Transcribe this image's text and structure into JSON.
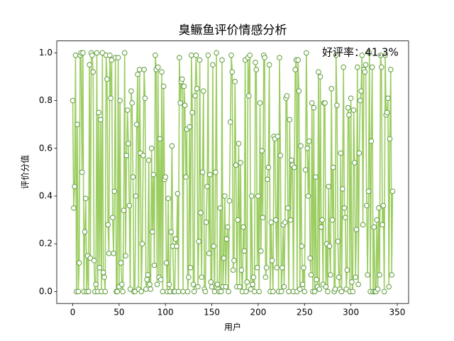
{
  "chart_data": {
    "type": "line",
    "title": "臭鳜鱼评价情感分析",
    "xlabel": "用户",
    "ylabel": "评价分值",
    "annotation": "好评率：41.3%",
    "xlim": [
      -17.25,
      362.25
    ],
    "xticks": [
      0,
      50,
      100,
      150,
      200,
      250,
      300,
      350
    ],
    "ylim": [
      -0.05,
      1.05
    ],
    "yticks": [
      {
        "value": 0,
        "label": "0.0"
      },
      0.2,
      0.4,
      0.6,
      0.8,
      {
        "value": 1,
        "label": "1.0"
      }
    ],
    "grid": false,
    "series": [
      {
        "color": "#9ccd62",
        "marker_edge": "#5e9c3a",
        "values": [
          0.8,
          0.35,
          0.44,
          0.99,
          0.0,
          0.7,
          0.0,
          0.12,
          0.99,
          1.0,
          0.5,
          1.0,
          0.0,
          0.25,
          0.39,
          0.0,
          0.15,
          0.0,
          0.95,
          0.14,
          1.0,
          0.99,
          0.92,
          0.13,
          0.0,
          0.03,
          1.0,
          0.0,
          0.75,
          0.1,
          0.72,
          0.0,
          1.0,
          0.08,
          0.06,
          0.0,
          0.99,
          0.89,
          0.28,
          0.16,
          0.99,
          0.81,
          0.97,
          0.31,
          0.16,
          0.42,
          0.98,
          0.0,
          0.0,
          0.98,
          0.02,
          0.8,
          0.12,
          0.03,
          0.0,
          0.34,
          1.0,
          0.15,
          0.57,
          0.76,
          0.62,
          0.36,
          0.01,
          0.84,
          0.79,
          0.48,
          0.0,
          0.0,
          0.4,
          0.7,
          0.91,
          0.01,
          0.93,
          0.58,
          0.0,
          0.2,
          0.57,
          0.93,
          0.81,
          0.01,
          0.05,
          0.07,
          0.55,
          0.03,
          0.01,
          0.6,
          0.25,
          0.49,
          0.11,
          0.99,
          0.93,
          0.03,
          0.94,
          0.06,
          0.64,
          0.05,
          0.92,
          0.0,
          0.86,
          0.47,
          0.48,
          0.12,
          0.0,
          0.39,
          0.03,
          0.0,
          0.25,
          0.61,
          0.19,
          0.0,
          0.0,
          0.22,
          0.19,
          0.41,
          0.0,
          0.98,
          0.79,
          0.88,
          0.89,
          0.0,
          0.86,
          0.78,
          0.48,
          0.68,
          0.0,
          0.06,
          0.69,
          0.1,
          0.99,
          0.75,
          0.03,
          0.0,
          0.82,
          0.99,
          0.85,
          0.02,
          0.21,
          0.97,
          0.33,
          0.06,
          0.5,
          0.84,
          0.01,
          0.0,
          0.29,
          0.44,
          0.99,
          0.16,
          0.49,
          0.04,
          0.02,
          0.95,
          0.19,
          0.0,
          0.5,
          1.0,
          0.03,
          0.01,
          0.0,
          0.35,
          0.0,
          0.97,
          0.02,
          0.14,
          0.4,
          0.02,
          0.22,
          0.27,
          0.0,
          0.38,
          0.71,
          0.99,
          0.92,
          0.09,
          0.13,
          0.88,
          0.53,
          0.02,
          0.3,
          0.62,
          0.02,
          0.54,
          0.09,
          0.0,
          0.27,
          0.17,
          0.97,
          0.0,
          0.04,
          0.98,
          0.82,
          0.99,
          0.01,
          0.4,
          0.03,
          0.06,
          0.0,
          0.96,
          0.93,
          0.1,
          0.4,
          0.0,
          0.79,
          0.17,
          0.59,
          0.31,
          0.99,
          0.98,
          0.06,
          0.1,
          0.47,
          0.52,
          0.95,
          0.0,
          0.29,
          0.13,
          0.0,
          0.65,
          0.64,
          0.3,
          0.1,
          0.65,
          0.0,
          0.98,
          0.57,
          0.0,
          0.1,
          0.28,
          0.02,
          0.29,
          0.81,
          0.82,
          0.35,
          0.0,
          0.72,
          0.3,
          0.55,
          0.53,
          0.0,
          0.52,
          0.93,
          0.97,
          0.0,
          0.97,
          0.84,
          0.01,
          0.61,
          0.19,
          0.03,
          0.1,
          0.0,
          0.51,
          1.0,
          0.6,
          0.4,
          0.63,
          0.14,
          0.07,
          0.79,
          0.0,
          0.77,
          0.0,
          0.48,
          0.05,
          0.02,
          0.92,
          0.01,
          0.9,
          0.27,
          0.3,
          0.03,
          0.79,
          0.79,
          0.02,
          0.2,
          0.0,
          0.44,
          0.19,
          0.07,
          0.85,
          0.3,
          0.52,
          0.0,
          0.01,
          0.99,
          0.78,
          0.21,
          0.06,
          0.01,
          0.58,
          0.0,
          0.43,
          0.94,
          0.35,
          0.31,
          0.01,
          0.09,
          0.77,
          0.74,
          0.0,
          0.81,
          0.04,
          0.0,
          0.76,
          0.54,
          0.06,
          0.26,
          0.94,
          0.03,
          0.58,
          0.8,
          0.84,
          0.99,
          0.28,
          0.93,
          0.92,
          0.95,
          0.36,
          0.07,
          0.42,
          1.0,
          0.0,
          0.63,
          0.94,
          0.0,
          0.27,
          0.0,
          0.0,
          0.3,
          0.01,
          0.35,
          0.07,
          0.99,
          0.94,
          0.28,
          0.36,
          0.0,
          0.99,
          0.74,
          0.75,
          0.81,
          0.02,
          0.64,
          0.93,
          0.07,
          0.42
        ]
      }
    ]
  }
}
